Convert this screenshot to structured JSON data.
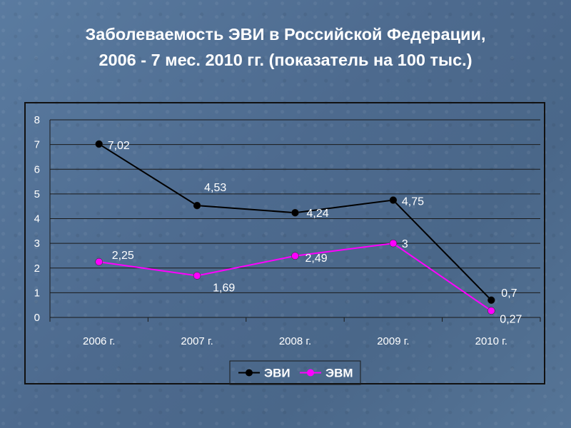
{
  "slide": {
    "title_line1": "Заболеваемость ЭВИ в Российской Федерации,",
    "title_line2": "2006 - 7 мес. 2010 гг. (показатель на 100 тыс.)"
  },
  "chart_data": {
    "type": "line",
    "categories": [
      "2006 г.",
      "2007 г.",
      "2008 г.",
      "2009 г.",
      "2010 г."
    ],
    "ylim": [
      0,
      8
    ],
    "yticks": [
      0,
      1,
      2,
      3,
      4,
      5,
      6,
      7,
      8
    ],
    "grid": true,
    "legend_position": "bottom",
    "series": [
      {
        "name": "ЭВИ",
        "color": "#000000",
        "values": [
          7.02,
          4.53,
          4.24,
          4.75,
          0.7
        ],
        "labels": [
          "7,02",
          "4,53",
          "4,24",
          "4,75",
          "0,7"
        ]
      },
      {
        "name": "ЭВМ",
        "color": "#ff00ff",
        "values": [
          2.25,
          1.69,
          2.49,
          3,
          0.27
        ],
        "labels": [
          "2,25",
          "1,69",
          "2,49",
          "3",
          "0,27"
        ]
      }
    ]
  }
}
